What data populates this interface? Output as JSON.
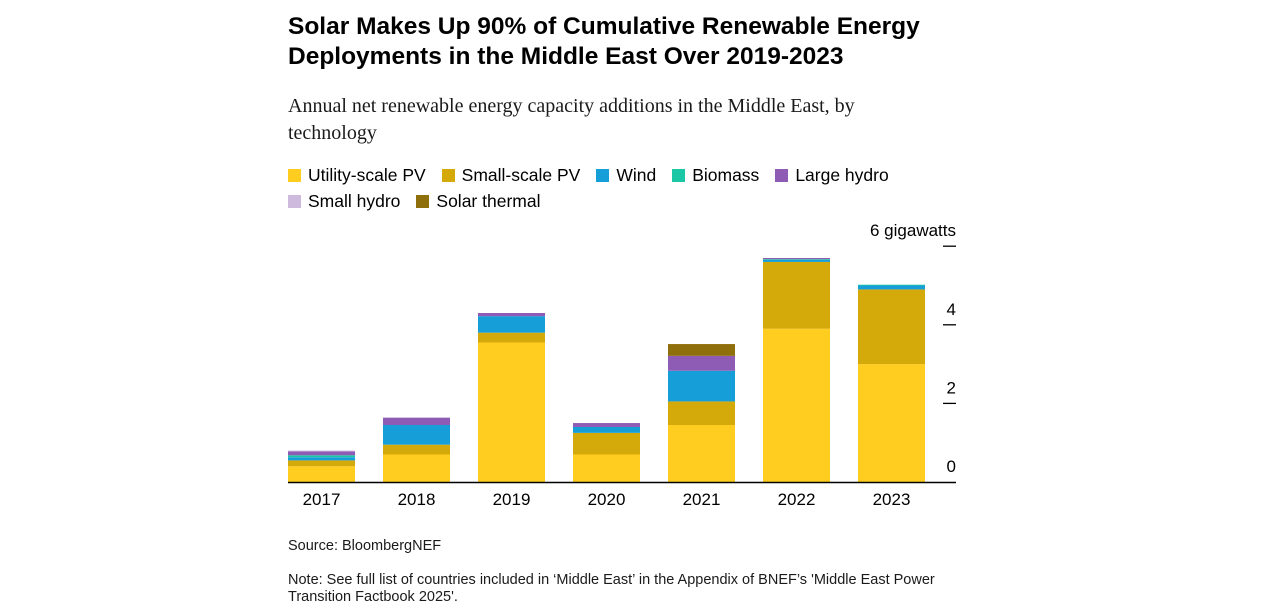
{
  "title": "Solar Makes Up 90% of Cumulative Renewable Energy Deployments in the Middle East Over 2019-2023",
  "subtitle": "Annual net renewable energy capacity additions in the Middle East, by technology",
  "source": "Source: BloombergNEF",
  "note": "Note: See full list of countries included in ‘Middle East’ in the Appendix of BNEF’s 'Middle East Power Transition Factbook 2025'.",
  "chart_data": {
    "type": "bar",
    "stacked": true,
    "categories": [
      "2017",
      "2018",
      "2019",
      "2020",
      "2021",
      "2022",
      "2023"
    ],
    "ylabel": "6 gigawatts",
    "ylim": [
      0,
      6
    ],
    "yticks": [
      0,
      2,
      4,
      6
    ],
    "ytick_labels": [
      "0",
      "2",
      "4",
      "6 gigawatts"
    ],
    "legend_position": "top",
    "series": [
      {
        "name": "Utility-scale PV",
        "color": "#FFCD1F",
        "values": [
          0.4,
          0.7,
          3.55,
          0.7,
          1.45,
          3.9,
          3.0
        ]
      },
      {
        "name": "Small-scale PV",
        "color": "#D4A90A",
        "values": [
          0.15,
          0.25,
          0.25,
          0.55,
          0.6,
          1.7,
          1.9
        ]
      },
      {
        "name": "Wind",
        "color": "#169ED8",
        "values": [
          0.08,
          0.5,
          0.42,
          0.15,
          0.78,
          0.05,
          0.1
        ]
      },
      {
        "name": "Biomass",
        "color": "#1CC7A5",
        "values": [
          0.05,
          0.0,
          0.0,
          0.0,
          0.0,
          0.02,
          0.02
        ]
      },
      {
        "name": "Large hydro",
        "color": "#8E5BB5",
        "values": [
          0.1,
          0.18,
          0.08,
          0.1,
          0.38,
          0.03,
          0.0
        ]
      },
      {
        "name": "Small hydro",
        "color": "#CDBADD",
        "values": [
          0.02,
          0.02,
          0.0,
          0.0,
          0.0,
          0.0,
          0.0
        ]
      },
      {
        "name": "Solar thermal",
        "color": "#8F6E0C",
        "values": [
          0.0,
          0.0,
          0.0,
          0.0,
          0.3,
          0.0,
          0.0
        ]
      }
    ]
  }
}
